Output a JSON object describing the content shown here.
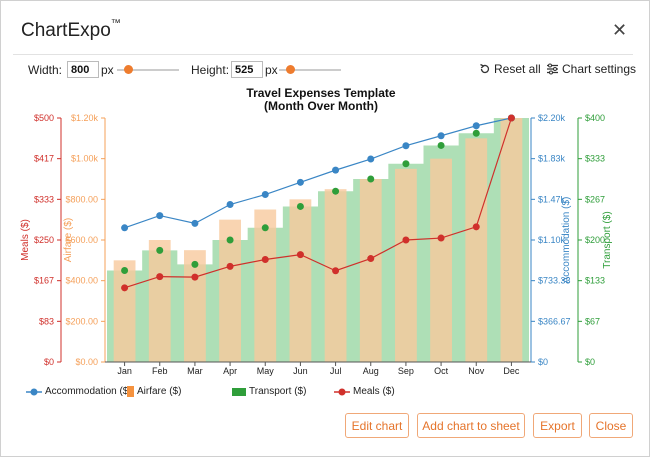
{
  "app": {
    "name": "ChartExpo",
    "trademark": "™",
    "close_glyph": "✕"
  },
  "controls": {
    "width_label": "Width:",
    "width_value": "800",
    "width_unit": "px",
    "height_label": "Height:",
    "height_value": "525",
    "height_unit": "px",
    "reset_label": "Reset all",
    "settings_label": "Chart settings"
  },
  "buttons": {
    "edit": "Edit chart",
    "add": "Add chart to sheet",
    "export": "Export",
    "close": "Close"
  },
  "legend": {
    "accommodation": "Accommodation ($)",
    "airfare": "Airfare ($)",
    "transport": "Transport ($)",
    "meals": "Meals ($)"
  },
  "colors": {
    "accent": "#ee7c2e",
    "meals": "#d0302b",
    "airfare": "#f5a05a",
    "accommodation": "#3a86c5",
    "transport": "#2f9e3a",
    "transport_fill": "#6cc47a",
    "airfare_fill": "#f8c99d"
  },
  "chart_data": {
    "type": "combo",
    "title": "Travel Expenses Template",
    "subtitle": "(Month Over Month)",
    "categories": [
      "Jan",
      "Feb",
      "Mar",
      "Apr",
      "May",
      "Jun",
      "Jul",
      "Aug",
      "Sep",
      "Oct",
      "Nov",
      "Dec"
    ],
    "axes": {
      "meals": {
        "label": "Meals ($)",
        "range": [
          0,
          500
        ],
        "ticks": [
          "$0",
          "$83",
          "$167",
          "$250",
          "$333",
          "$417",
          "$500"
        ]
      },
      "airfare": {
        "label": "Airfare ($)",
        "range": [
          0,
          1200
        ],
        "ticks": [
          "$0.00",
          "$200.00",
          "$400.00",
          "$600.00",
          "$800.00",
          "$1.00k",
          "$1.20k"
        ]
      },
      "accommodation": {
        "label": "Accommodation ($)",
        "range": [
          0,
          2200
        ],
        "ticks": [
          "$0",
          "$366.67",
          "$733.33",
          "$1.10k",
          "$1.47k",
          "$1.83k",
          "$2.20k"
        ]
      },
      "transport": {
        "label": "Transport ($)",
        "range": [
          0,
          400
        ],
        "ticks": [
          "$0",
          "$67",
          "$133",
          "$200",
          "$267",
          "$333",
          "$400"
        ]
      }
    },
    "series": [
      {
        "name": "Accommodation ($)",
        "type": "line",
        "axis": "accommodation",
        "values": [
          1210,
          1320,
          1250,
          1420,
          1510,
          1620,
          1730,
          1830,
          1950,
          2040,
          2130,
          2200
        ]
      },
      {
        "name": "Airfare ($)",
        "type": "bar",
        "axis": "airfare",
        "values": [
          500,
          600,
          550,
          700,
          750,
          800,
          850,
          900,
          950,
          1000,
          1100,
          1200
        ]
      },
      {
        "name": "Transport ($)",
        "type": "area",
        "axis": "transport",
        "values": [
          150,
          183,
          160,
          200,
          220,
          255,
          280,
          300,
          325,
          355,
          375,
          400
        ]
      },
      {
        "name": "Meals ($)",
        "type": "line",
        "axis": "meals",
        "values": [
          152,
          175,
          174,
          196,
          210,
          220,
          187,
          212,
          250,
          254,
          277,
          500
        ]
      }
    ]
  }
}
